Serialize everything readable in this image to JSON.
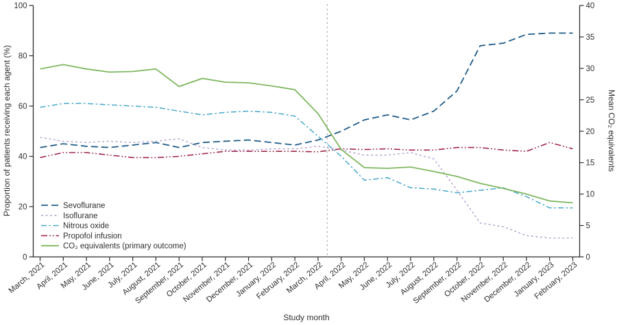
{
  "figure_title": "",
  "chart_data": {
    "type": "line",
    "x_categories": [
      "March, 2021",
      "April, 2021",
      "May, 2021",
      "June, 2021",
      "July, 2021",
      "August, 2021",
      "September, 2021",
      "October, 2021",
      "November, 2021",
      "December, 2021",
      "January, 2022",
      "February, 2022",
      "March, 2022",
      "April, 2022",
      "May, 2022",
      "June, 2022",
      "July, 2022",
      "August, 2022",
      "September, 2022",
      "October, 2022",
      "November, 2022",
      "December, 2022",
      "January, 2023",
      "February, 2023"
    ],
    "axes": {
      "x": {
        "label": "Study month"
      },
      "left": {
        "label": "Proportion of patients receiving each agent (%)",
        "min": 0,
        "max": 100,
        "ticks": [
          0,
          20,
          40,
          60,
          80,
          100
        ]
      },
      "right": {
        "label": "Mean CO₂ equivalents",
        "min": 0,
        "max": 40,
        "ticks": [
          0,
          5,
          10,
          15,
          20,
          25,
          30,
          35,
          40
        ]
      }
    },
    "grid": false,
    "legend_position": "inside-bottom-left",
    "reference_line": {
      "orientation": "vertical",
      "style": "dashed",
      "color": "#b7b7bf",
      "position_between": [
        "March, 2022",
        "April, 2022"
      ],
      "fraction_after_first": 0.4
    },
    "series": [
      {
        "key": "sevoflurane",
        "name": "Sevoflurane",
        "axis": "left",
        "color": "#1e5b87",
        "style": "dashed",
        "values": [
          43.5,
          45,
          44,
          43.5,
          44.5,
          45.5,
          43.5,
          45.5,
          46,
          46.5,
          45.5,
          44.5,
          46.5,
          50,
          54.5,
          56.5,
          54.5,
          58,
          66,
          84,
          85,
          88.5,
          89,
          89
        ]
      },
      {
        "key": "isoflurane",
        "name": "Isoflurane",
        "axis": "left",
        "color": "#ae97cc",
        "style": "dotted",
        "values": [
          47.5,
          46,
          45.5,
          46,
          45.5,
          46,
          47,
          43.5,
          42.5,
          42.5,
          43,
          43,
          44,
          42.5,
          40.5,
          40.5,
          41.5,
          39,
          26.5,
          13.5,
          12,
          8.5,
          7.5,
          7.5
        ]
      },
      {
        "key": "nitrous-oxide",
        "name": "Nitrous oxide",
        "axis": "left",
        "color": "#44a7c9",
        "style": "dash-dot",
        "values": [
          59.5,
          61,
          61,
          60.5,
          60,
          59.5,
          58,
          56.5,
          57.5,
          58,
          57.5,
          56,
          48,
          40,
          30.5,
          31.5,
          27.5,
          27,
          25.5,
          26.5,
          27.5,
          24,
          19.5,
          19.5
        ]
      },
      {
        "key": "propofol-infusion",
        "name": "Propofol infusion",
        "axis": "left",
        "color": "#a02648",
        "style": "dash-dot-dot",
        "values": [
          39.5,
          41.5,
          41.5,
          40.5,
          39.5,
          39.5,
          40,
          41,
          42,
          42,
          42,
          42,
          41.8,
          43,
          42.7,
          43,
          42.5,
          42.5,
          43.5,
          43.5,
          42.5,
          42,
          45.5,
          43
        ]
      },
      {
        "key": "co2-equivalents",
        "name": "CO₂ equivalents (primary outcome)",
        "axis": "right",
        "color": "#7eb75f",
        "style": "solid",
        "values": [
          29.9,
          30.6,
          29.9,
          29.4,
          29.5,
          29.9,
          27.1,
          28.4,
          27.8,
          27.7,
          27.2,
          26.6,
          22.8,
          17.1,
          14.2,
          14.1,
          14.3,
          13.6,
          12.8,
          11.7,
          10.9,
          10.0,
          8.9,
          8.6
        ]
      }
    ]
  }
}
